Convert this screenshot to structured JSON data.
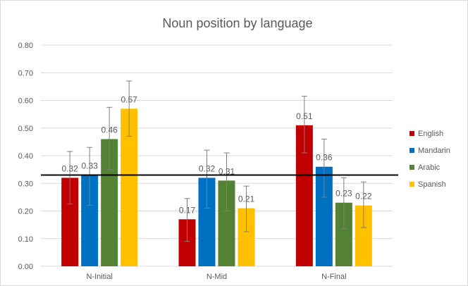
{
  "chart_data": {
    "type": "bar",
    "title": "Noun position by language",
    "categories": [
      "N-Initial",
      "N-Mid",
      "N-Final"
    ],
    "ylim": [
      0,
      0.8
    ],
    "yticks": [
      "0.00",
      "0.10",
      "0.20",
      "0.30",
      "0.40",
      "0.50",
      "0.60",
      "0.70",
      "0.80"
    ],
    "grid": true,
    "legend_position": "right",
    "reference_line": 0.33,
    "series": [
      {
        "name": "English",
        "color": "#c00000",
        "values": [
          0.32,
          0.17,
          0.51
        ],
        "labels": [
          "0.32",
          "0.17",
          "0.51"
        ],
        "err_low": [
          0.225,
          0.09,
          0.41
        ],
        "err_high": [
          0.415,
          0.245,
          0.615
        ]
      },
      {
        "name": "Mandarin",
        "color": "#0070c0",
        "values": [
          0.33,
          0.32,
          0.36
        ],
        "labels": [
          "0.33",
          "0.32",
          "0.36"
        ],
        "err_low": [
          0.22,
          0.21,
          0.25
        ],
        "err_high": [
          0.43,
          0.42,
          0.46
        ]
      },
      {
        "name": "Arabic",
        "color": "#548235",
        "values": [
          0.46,
          0.31,
          0.23
        ],
        "labels": [
          "0.46",
          "0.31",
          "0.23"
        ],
        "err_low": [
          0.35,
          0.2,
          0.135
        ],
        "err_high": [
          0.575,
          0.41,
          0.32
        ]
      },
      {
        "name": "Spanish",
        "color": "#ffc000",
        "values": [
          0.57,
          0.21,
          0.22
        ],
        "labels": [
          "0.57",
          "0.21",
          "0.22"
        ],
        "err_low": [
          0.47,
          0.125,
          0.14
        ],
        "err_high": [
          0.67,
          0.29,
          0.305
        ]
      }
    ]
  }
}
